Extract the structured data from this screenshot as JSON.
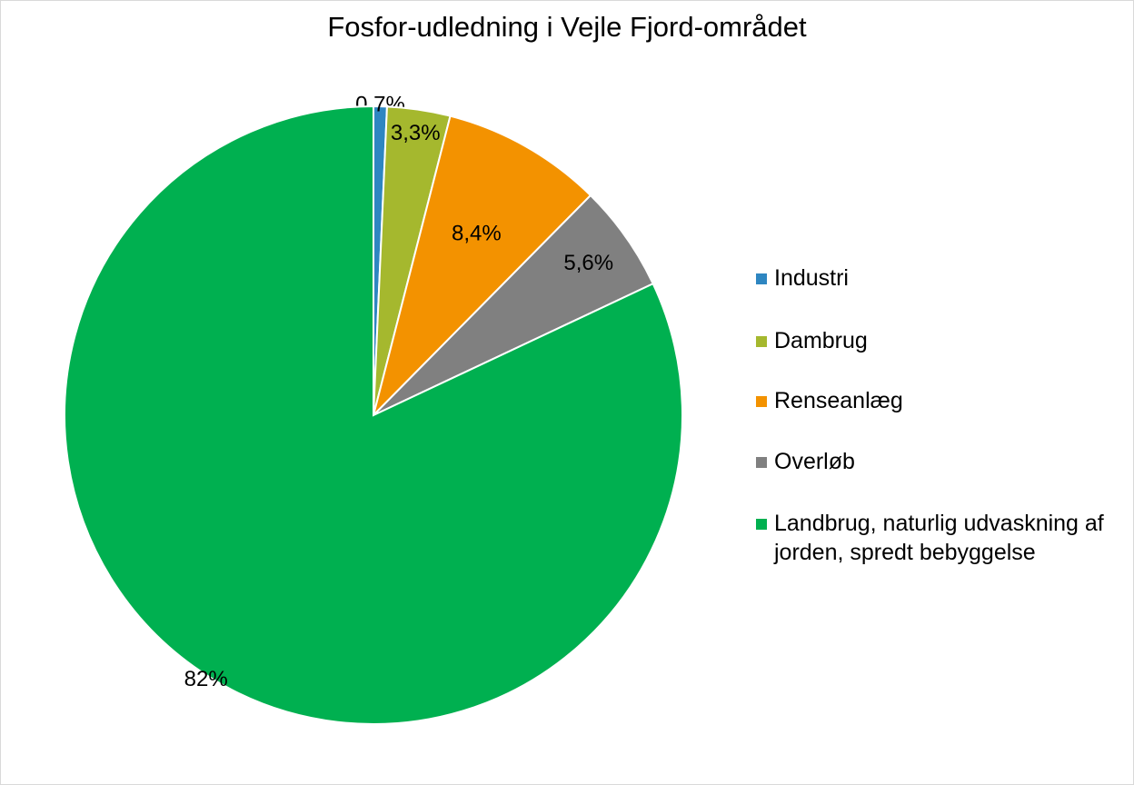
{
  "chart_data": {
    "type": "pie",
    "title": "Fosfor-udledning  i Vejle Fjord-området",
    "legend_position": "right",
    "slices": [
      {
        "name": "Industri",
        "value": 0.7,
        "label": "0,7%",
        "color": "#2e86c1"
      },
      {
        "name": "Dambrug",
        "value": 3.3,
        "label": "3,3%",
        "color": "#a5b82e"
      },
      {
        "name": "Renseanlæg",
        "value": 8.4,
        "label": "8,4%",
        "color": "#f39200"
      },
      {
        "name": "Overløb",
        "value": 5.6,
        "label": "5,6%",
        "color": "#808080"
      },
      {
        "name": "Landbrug, naturlig udvaskning af jorden, spredt bebyggelse",
        "value": 82,
        "label": "82%",
        "color": "#00b050"
      }
    ]
  }
}
